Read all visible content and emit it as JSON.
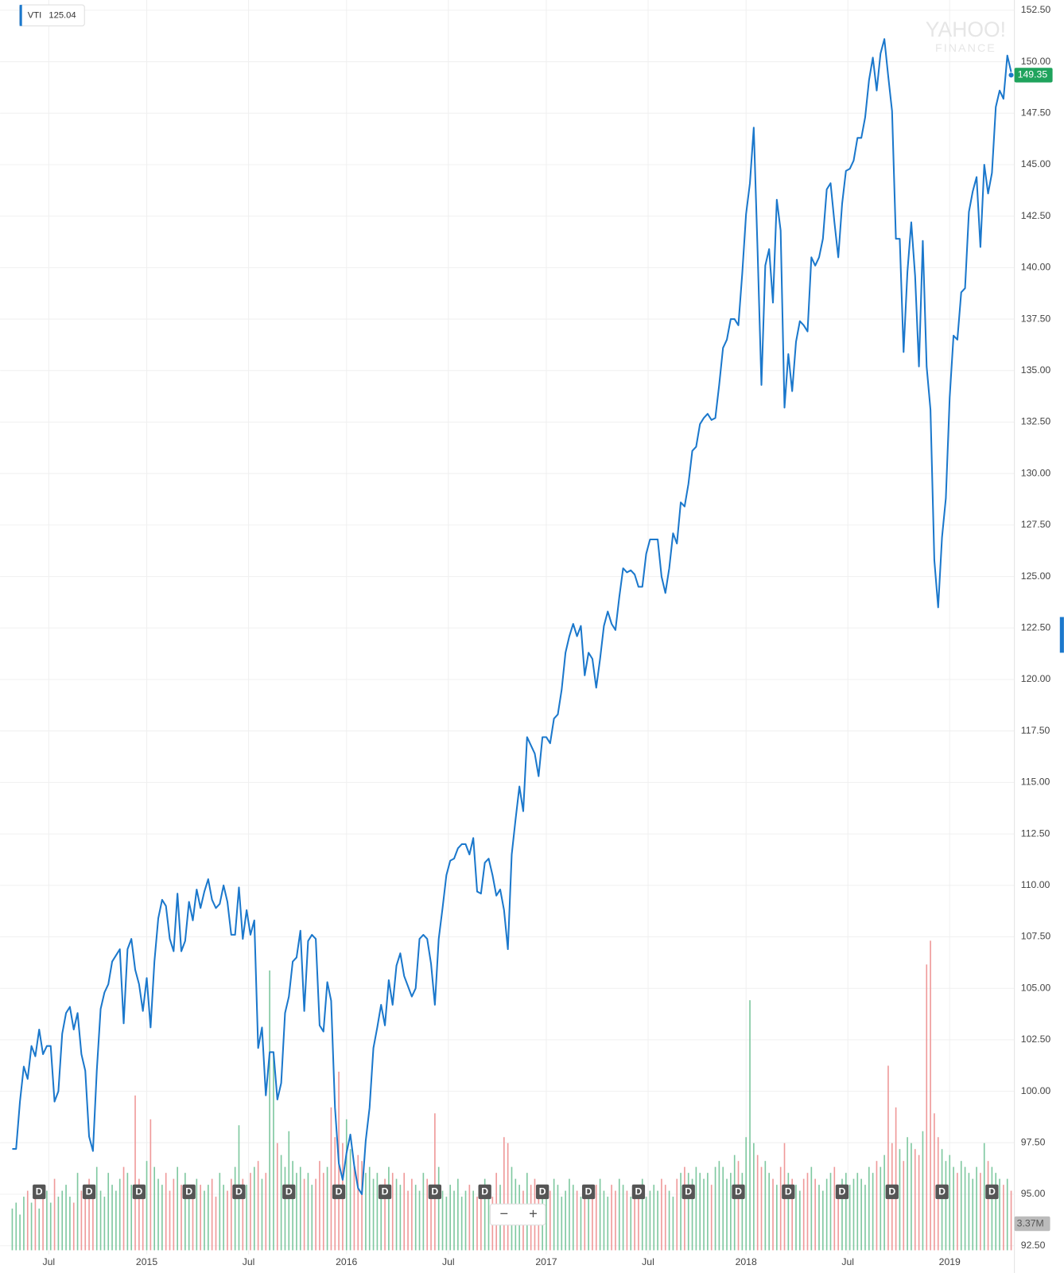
{
  "chart_data": {
    "type": "line",
    "legend": {
      "symbol": "VTI",
      "value": 125.04
    },
    "watermark": {
      "brand": "YAHOO!",
      "sub": "FINANCE"
    },
    "last_price": 149.35,
    "volume_tag": {
      "value": 3.37,
      "label": "3.37M"
    },
    "controls": {
      "zoom_out": "−",
      "zoom_in": "+"
    },
    "xlim": [
      0,
      260
    ],
    "xticks": [
      {
        "value": 9.5,
        "label": "Jul"
      },
      {
        "value": 35,
        "label": "2015"
      },
      {
        "value": 61.5,
        "label": "Jul"
      },
      {
        "value": 87,
        "label": "2016"
      },
      {
        "value": 113.5,
        "label": "Jul"
      },
      {
        "value": 139,
        "label": "2017"
      },
      {
        "value": 165.5,
        "label": "Jul"
      },
      {
        "value": 191,
        "label": "2018"
      },
      {
        "value": 217.5,
        "label": "Jul"
      },
      {
        "value": 244,
        "label": "2019"
      }
    ],
    "ylim": [
      92.5,
      152.5
    ],
    "yticks": [
      {
        "value": 92.5,
        "label": "92.50"
      },
      {
        "value": 95,
        "label": "95.00"
      },
      {
        "value": 97.5,
        "label": "97.50"
      },
      {
        "value": 100,
        "label": "100.00"
      },
      {
        "value": 102.5,
        "label": "102.50"
      },
      {
        "value": 105,
        "label": "105.00"
      },
      {
        "value": 107.5,
        "label": "107.50"
      },
      {
        "value": 110,
        "label": "110.00"
      },
      {
        "value": 112.5,
        "label": "112.50"
      },
      {
        "value": 115,
        "label": "115.00"
      },
      {
        "value": 117.5,
        "label": "117.50"
      },
      {
        "value": 120,
        "label": "120.00"
      },
      {
        "value": 122.5,
        "label": "122.50"
      },
      {
        "value": 125,
        "label": "125.00"
      },
      {
        "value": 127.5,
        "label": "127.50"
      },
      {
        "value": 130,
        "label": "130.00"
      },
      {
        "value": 132.5,
        "label": "132.50"
      },
      {
        "value": 135,
        "label": "135.00"
      },
      {
        "value": 137.5,
        "label": "137.50"
      },
      {
        "value": 140,
        "label": "140.00"
      },
      {
        "value": 142.5,
        "label": "142.50"
      },
      {
        "value": 145,
        "label": "145.00"
      },
      {
        "value": 147.5,
        "label": "147.50"
      },
      {
        "value": 150,
        "label": "150.00"
      },
      {
        "value": 152.5,
        "label": "152.50"
      }
    ],
    "grid": true,
    "series": [
      {
        "name": "VTI",
        "color": "#1b78cc",
        "values": [
          97.2,
          97.2,
          99.5,
          101.2,
          100.6,
          102.2,
          101.7,
          103,
          101.8,
          102.2,
          102.2,
          99.5,
          100,
          102.8,
          103.8,
          104.1,
          103,
          103.8,
          101.8,
          101,
          97.8,
          97.1,
          101,
          104,
          104.8,
          105.2,
          106.3,
          106.6,
          106.9,
          103.3,
          106.9,
          107.4,
          105.9,
          105.2,
          103.9,
          105.5,
          103.1,
          106.3,
          108.4,
          109.3,
          109,
          107.4,
          106.8,
          109.6,
          106.8,
          107.3,
          109.2,
          108.3,
          109.8,
          108.9,
          109.7,
          110.3,
          109.3,
          108.9,
          109.1,
          110,
          109.2,
          107.6,
          107.6,
          109.9,
          107.4,
          108.8,
          107.6,
          108.3,
          102.1,
          103.1,
          99.8,
          101.9,
          101.9,
          99.6,
          100.4,
          103.8,
          104.6,
          106.3,
          106.5,
          107.8,
          103.9,
          107.3,
          107.6,
          107.4,
          103.2,
          102.9,
          105.3,
          104.4,
          99.2,
          96.5,
          95.7,
          97,
          97.9,
          96.4,
          95.3,
          95,
          97.6,
          99.2,
          102.1,
          103.1,
          104.2,
          103.2,
          105.4,
          104.2,
          106.1,
          106.7,
          105.6,
          105.1,
          104.6,
          105,
          107.4,
          107.6,
          107.4,
          106.2,
          104.2,
          107.4,
          108.9,
          110.5,
          111.2,
          111.3,
          111.8,
          112,
          112,
          111.5,
          112.3,
          109.7,
          109.6,
          111.1,
          111.3,
          110.5,
          109.5,
          109.8,
          108.8,
          106.9,
          111.5,
          113.2,
          114.8,
          113.6,
          117.2,
          116.8,
          116.4,
          115.3,
          117.2,
          117.2,
          116.9,
          118.1,
          118.3,
          119.5,
          121.3,
          122.1,
          122.7,
          122.1,
          122.6,
          120.2,
          121.3,
          121,
          119.6,
          121,
          122.6,
          123.3,
          122.7,
          122.4,
          124,
          125.4,
          125.2,
          125.3,
          125.1,
          124.5,
          124.5,
          126.1,
          126.8,
          126.8,
          126.8,
          125,
          124.2,
          125.4,
          127.1,
          126.6,
          128.6,
          128.4,
          129.5,
          131.1,
          131.3,
          132.4,
          132.7,
          132.9,
          132.6,
          132.7,
          134.3,
          136.1,
          136.5,
          137.5,
          137.5,
          137.2,
          139.7,
          142.6,
          144.1,
          146.8,
          140.8,
          134.3,
          140.1,
          140.9,
          138.3,
          143.3,
          141.8,
          133.2,
          135.8,
          134,
          136.4,
          137.4,
          137.2,
          136.9,
          140.5,
          140.1,
          140.5,
          141.4,
          143.8,
          144.1,
          142.2,
          140.5,
          143.1,
          144.7,
          144.8,
          145.2,
          146.3,
          146.3,
          147.3,
          149.1,
          150.2,
          148.6,
          150.4,
          151.1,
          149.3,
          147.6,
          141.4,
          141.4,
          135.9,
          139.8,
          142.2,
          139.6,
          135.2,
          141.3,
          135.2,
          133.1,
          125.8,
          123.5,
          126.9,
          128.8,
          133.7,
          136.7,
          136.5,
          138.8,
          139,
          142.7,
          143.7,
          144.4,
          141,
          145,
          143.6,
          144.6,
          147.8,
          148.6,
          148.2,
          150.3,
          149.5
        ]
      }
    ],
    "volume": {
      "up_color": "#7fc8a0",
      "down_color": "#ef9a9a",
      "vlim": [
        0,
        60
      ],
      "values": [
        7,
        8,
        6,
        9,
        10,
        8,
        11,
        7,
        9,
        10,
        8,
        12,
        9,
        10,
        11,
        9,
        8,
        13,
        10,
        9,
        12,
        11,
        14,
        10,
        9,
        13,
        11,
        10,
        12,
        14,
        13,
        11,
        26,
        12,
        10,
        15,
        22,
        14,
        12,
        11,
        13,
        10,
        12,
        14,
        11,
        13,
        10,
        9,
        12,
        11,
        10,
        11,
        12,
        9,
        13,
        11,
        10,
        12,
        14,
        21,
        12,
        11,
        13,
        14,
        15,
        12,
        13,
        47,
        33,
        18,
        16,
        14,
        20,
        15,
        13,
        14,
        12,
        13,
        11,
        12,
        15,
        13,
        14,
        24,
        19,
        30,
        18,
        22,
        17,
        14,
        16,
        15,
        13,
        14,
        12,
        13,
        11,
        12,
        14,
        13,
        12,
        11,
        13,
        10,
        12,
        11,
        10,
        13,
        12,
        11,
        23,
        14,
        10,
        9,
        11,
        10,
        12,
        9,
        10,
        11,
        10,
        9,
        11,
        12,
        10,
        9,
        13,
        11,
        19,
        18,
        14,
        12,
        11,
        10,
        13,
        11,
        12,
        10,
        9,
        11,
        10,
        12,
        11,
        9,
        10,
        12,
        11,
        10,
        9,
        11,
        10,
        9,
        11,
        12,
        10,
        9,
        11,
        10,
        12,
        11,
        10,
        9,
        11,
        10,
        12,
        9,
        10,
        11,
        10,
        12,
        11,
        10,
        9,
        12,
        13,
        14,
        13,
        12,
        14,
        13,
        12,
        13,
        11,
        14,
        15,
        14,
        12,
        13,
        16,
        15,
        13,
        19,
        42,
        18,
        16,
        14,
        15,
        13,
        12,
        11,
        14,
        18,
        13,
        12,
        11,
        10,
        12,
        13,
        14,
        12,
        11,
        10,
        12,
        13,
        14,
        11,
        12,
        13,
        11,
        12,
        13,
        12,
        11,
        14,
        13,
        15,
        14,
        16,
        31,
        18,
        24,
        17,
        15,
        19,
        18,
        17,
        16,
        20,
        48,
        52,
        23,
        19,
        17,
        15,
        16,
        14,
        13,
        15,
        14,
        13,
        12,
        14,
        13,
        18,
        15,
        14,
        13,
        12,
        11,
        12,
        10
      ]
    },
    "dividends": {
      "label": "D",
      "x": [
        7,
        20,
        33,
        46,
        59,
        72,
        85,
        97,
        110,
        123,
        138,
        150,
        163,
        176,
        189,
        202,
        216,
        229,
        242,
        255
      ]
    }
  }
}
